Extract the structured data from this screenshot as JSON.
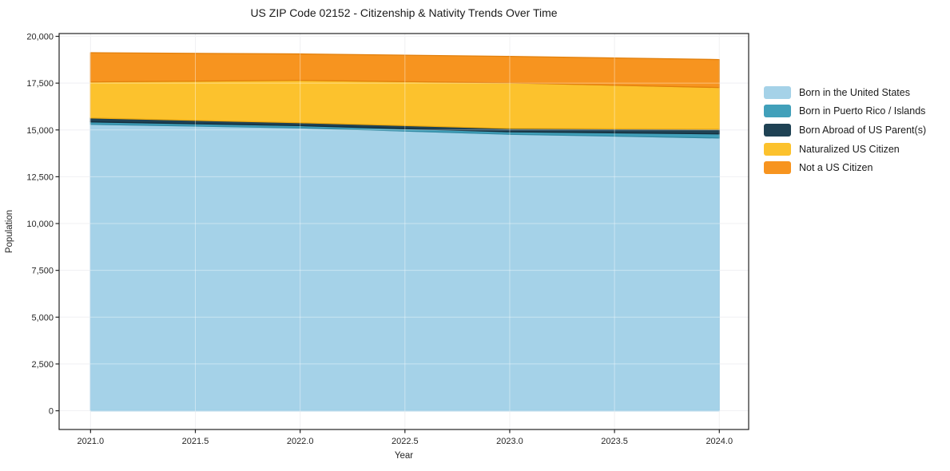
{
  "chart_data": {
    "type": "area",
    "stacked": true,
    "title": "US ZIP Code 02152 - Citizenship & Nativity Trends Over Time",
    "xlabel": "Year",
    "ylabel": "Population",
    "x": [
      2021,
      2022,
      2023,
      2024
    ],
    "series": [
      {
        "name": "Born in the United States",
        "color": "#a5d2e8",
        "edge": "#85bedd",
        "values": [
          15300,
          15110,
          14770,
          14570
        ]
      },
      {
        "name": "Born in Puerto Rico / Islands",
        "color": "#41a0ba",
        "edge": "#338ba4",
        "values": [
          130,
          120,
          130,
          220
        ]
      },
      {
        "name": "Born Abroad of US Parent(s)",
        "color": "#1f4254",
        "edge": "#142e3c",
        "values": [
          210,
          155,
          180,
          250
        ]
      },
      {
        "name": "Naturalized US Citizen",
        "color": "#fcc22d",
        "edge": "#efab10",
        "values": [
          1925,
          2265,
          2430,
          2225
        ]
      },
      {
        "name": "Not a US Citizen",
        "color": "#f7941f",
        "edge": "#e2800d",
        "values": [
          1560,
          1410,
          1420,
          1495
        ]
      }
    ],
    "xlim": [
      2020.85,
      2024.14
    ],
    "ylim": [
      -1000,
      20150
    ],
    "xticks": {
      "values": [
        2021.0,
        2021.5,
        2022.0,
        2022.5,
        2023.0,
        2023.5,
        2024.0
      ],
      "labels": [
        "2021.0",
        "2021.5",
        "2022.0",
        "2022.5",
        "2023.0",
        "2023.5",
        "2024.0"
      ]
    },
    "yticks": {
      "values": [
        0,
        2500,
        5000,
        7500,
        10000,
        12500,
        15000,
        17500,
        20000
      ],
      "labels": [
        "0",
        "2,500",
        "5,000",
        "7,500",
        "10,000",
        "12,500",
        "15,000",
        "17,500",
        "20,000"
      ]
    },
    "grid": true,
    "legend_position": "right",
    "grid_color": "#e6e6ea",
    "spine_color": "#222222"
  }
}
